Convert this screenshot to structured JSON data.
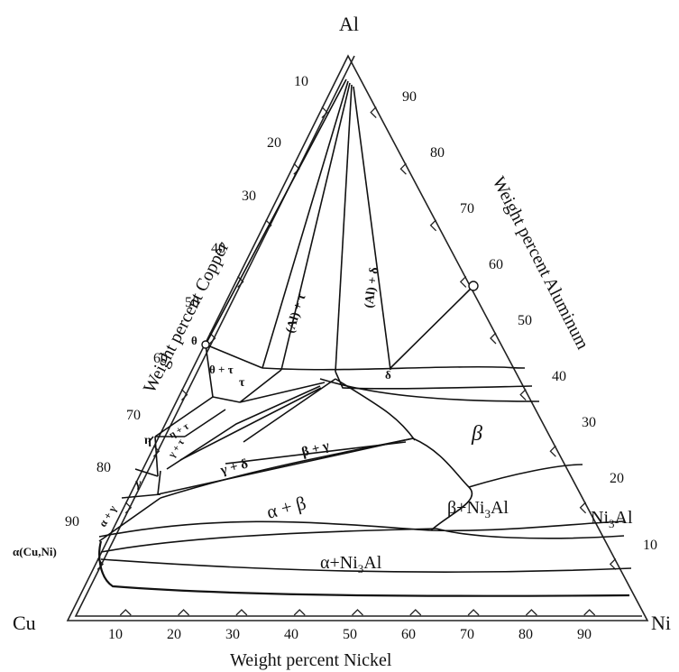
{
  "vertices": {
    "top": "Al",
    "left": "Cu",
    "right": "Ni"
  },
  "axis_titles": {
    "bottom": "Weight percent Nickel",
    "left": "Weight percent Copper",
    "right": "Weight percent Aluminum"
  },
  "ticks": {
    "bottom": [
      "10",
      "20",
      "30",
      "40",
      "50",
      "60",
      "70",
      "80",
      "90"
    ],
    "left": [
      "10",
      "20",
      "30",
      "40",
      "50",
      "60",
      "70",
      "80",
      "90"
    ],
    "right": [
      "90",
      "80",
      "70",
      "60",
      "50",
      "40",
      "30",
      "20",
      "10"
    ]
  },
  "phase_labels": {
    "al_tau": "(Al) + τ",
    "al_delta": "(Al) + δ",
    "theta_tau": "θ + τ",
    "tau": "τ",
    "delta": "δ",
    "theta": "θ",
    "eta": "η",
    "eta_tau": "η + τ",
    "gamma_tau_small": "γ + τ",
    "gamma_delta": "γ + δ",
    "beta_gamma": "β + γ",
    "beta": "β",
    "gamma": "γ",
    "alpha_gamma": "α + γ",
    "alpha_beta": "α + β",
    "beta_ni3al": "β+Ni",
    "alpha_ni3al": "α+Ni",
    "alpha_cuni": "α(Cu,Ni)",
    "ni3al_side": "Ni",
    "sub3": "3",
    "al_suffix": "Al"
  }
}
